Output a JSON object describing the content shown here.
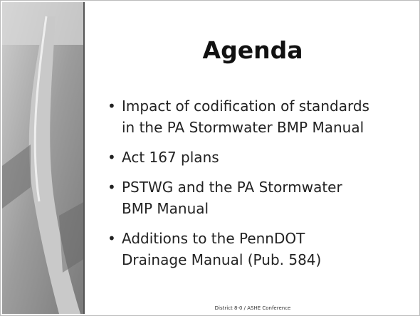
{
  "slide": {
    "title": "Agenda",
    "bullets": [
      {
        "lines": [
          "Impact of codification of standards",
          "in the PA Stormwater BMP Manual"
        ]
      },
      {
        "lines": [
          "Act 167 plans"
        ]
      },
      {
        "lines": [
          "PSTWG and the PA Stormwater",
          "BMP Manual"
        ]
      },
      {
        "lines": [
          "Additions to the PennDOT",
          "Drainage Manual (Pub. 584)"
        ]
      }
    ],
    "footer": "District 8-0 / ASHE Conference"
  }
}
